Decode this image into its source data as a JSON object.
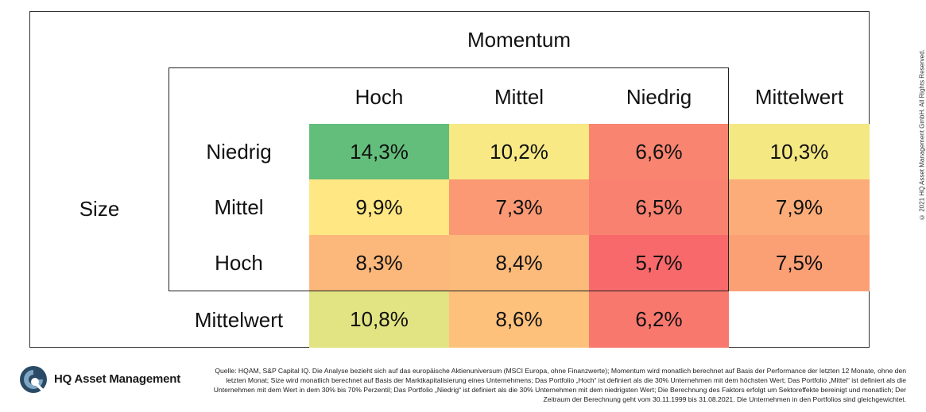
{
  "copyright": "© 2021 HQ Asset Management GmbH. All Rights Reserved.",
  "brand": {
    "name": "HQ Asset Management"
  },
  "source_note": "Quelle: HQAM, S&P Capital IQ. Die Analyse bezieht sich auf das europäische Aktienuniversum (MSCI Europa, ohne Finanzwerte); Momentum wird monatlich berechnet auf Basis der Performance der letzten 12 Monate, ohne den letzten Monat; Size wird monatlich berechnet auf Basis der Marktkapitalisierung eines Unternehmens; Das Portfolio „Hoch“ ist definiert als die 30% Unternehmen mit dem höchsten Wert; Das Portfolio „Mittel“ ist definiert als die Unternehmen mit dem Wert in dem 30% bis 70% Perzentil; Das Portfolio „Niedrig“ ist definiert als die 30% Unternehmen mit dem niedrigsten Wert; Die Berechnung des Faktors erfolgt um Sektoreffekte bereinigt und monatlich; Der Zeitraum der Berechnung geht vom 30.11.1999 bis 31.08.2021. Die Unternehmen in den Portfolios sind gleichgewichtet.",
  "chart_data": {
    "type": "heatmap",
    "xlabel": "Momentum",
    "ylabel": "Size",
    "x_categories": [
      "Hoch",
      "Mittel",
      "Niedrig"
    ],
    "y_categories": [
      "Niedrig",
      "Mittel",
      "Hoch"
    ],
    "values": [
      [
        14.3,
        10.2,
        6.6
      ],
      [
        9.9,
        7.3,
        6.5
      ],
      [
        8.3,
        8.4,
        5.7
      ]
    ],
    "labels": [
      [
        "14,3%",
        "10,2%",
        "6,6%"
      ],
      [
        "9,9%",
        "7,3%",
        "6,5%"
      ],
      [
        "8,3%",
        "8,4%",
        "5,7%"
      ]
    ],
    "row_mean_label": "Mittelwert",
    "row_means": [
      10.3,
      7.9,
      7.5
    ],
    "row_mean_labels": [
      "10,3%",
      "7,9%",
      "7,5%"
    ],
    "col_mean_label": "Mittelwert",
    "col_means": [
      10.8,
      8.6,
      6.2
    ],
    "col_mean_labels": [
      "10,8%",
      "8,6%",
      "6,2%"
    ],
    "colors": {
      "high": "#63be7b",
      "mid": "#ffeb84",
      "low": "#f8696b"
    }
  }
}
